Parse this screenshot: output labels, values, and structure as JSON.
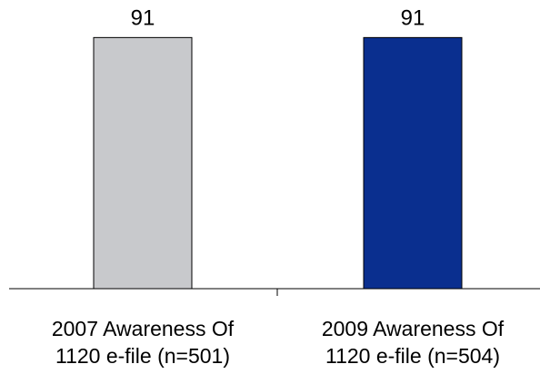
{
  "chart_data": {
    "type": "bar",
    "categories": [
      [
        "2007 Awareness Of",
        "1120 e-file (n=501)"
      ],
      [
        "2009 Awareness Of",
        "1120 e-file (n=504)"
      ]
    ],
    "values": [
      91,
      91
    ],
    "data_labels": [
      "91",
      "91"
    ],
    "bar_colors": [
      "#c8c9cc",
      "#0a2f8f"
    ],
    "title": "",
    "xlabel": "",
    "ylabel": "",
    "ylim": [
      0,
      100
    ],
    "grid": false,
    "legend": "none"
  }
}
